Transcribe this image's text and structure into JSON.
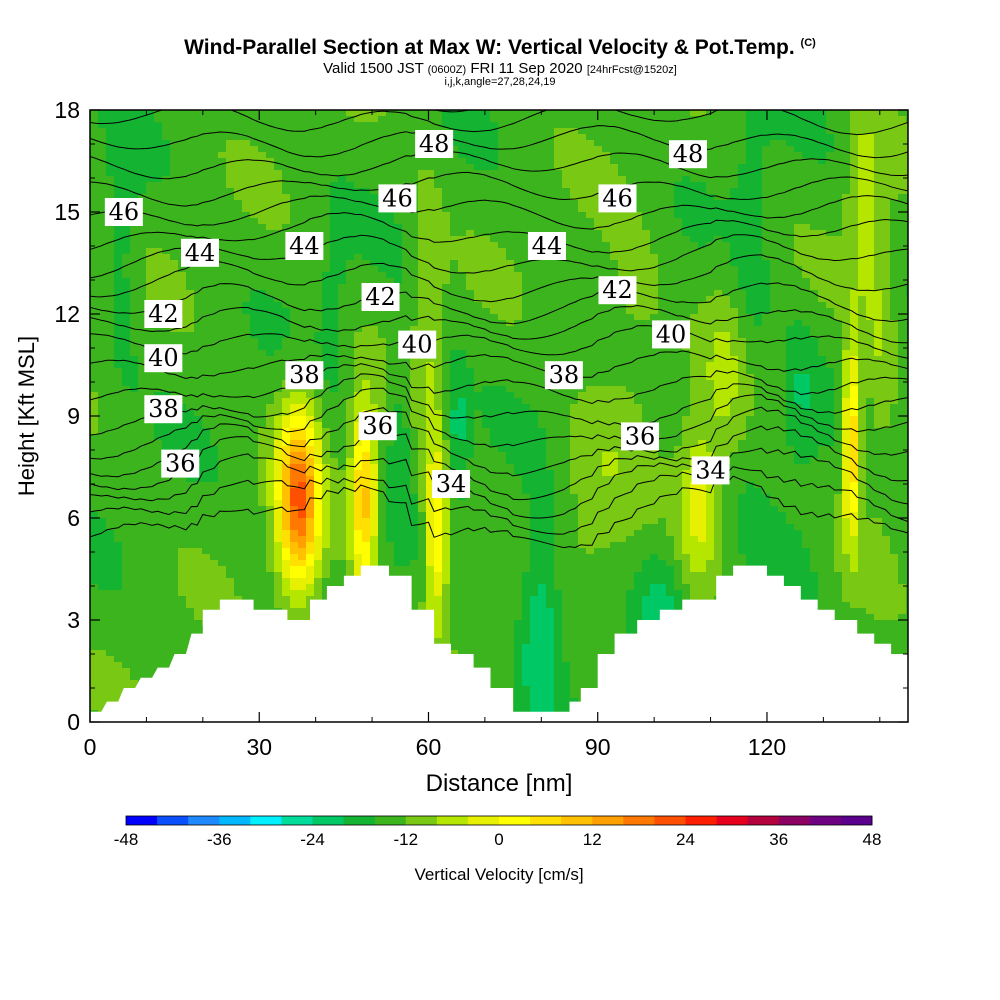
{
  "title": {
    "main": "Wind-Parallel Section at Max W: Vertical Velocity & Pot.Temp.",
    "copyright": "(C)",
    "valid_prefix": "Valid 1500 JST",
    "utc": "(0600Z)",
    "valid_date": "FRI 11 Sep 2020",
    "forecast": "[24hrFcst@1520z]",
    "params": "i,j,k,angle=27,28,24,19"
  },
  "chart_data": {
    "type": "heatmap",
    "xlabel": "Distance [nm]",
    "ylabel": "Height [Kft MSL]",
    "xlim": [
      0,
      145
    ],
    "ylim": [
      0,
      18
    ],
    "x_ticks": [
      "0",
      "30",
      "60",
      "90",
      "120"
    ],
    "y_ticks": [
      "0",
      "3",
      "6",
      "9",
      "12",
      "15",
      "18"
    ],
    "colorbar": {
      "label": "Vertical Velocity [cm/s]",
      "min": -48,
      "max": 48,
      "step": 6,
      "tick_labels": [
        "-48",
        "-36",
        "-24",
        "-12",
        "0",
        "12",
        "24",
        "36",
        "48"
      ],
      "colors": [
        "#0000ff",
        "#0a50ff",
        "#1e88ff",
        "#00b8ff",
        "#00f0ff",
        "#00dc9c",
        "#00c864",
        "#14b432",
        "#3cb41e",
        "#78c814",
        "#b4e600",
        "#e6f000",
        "#ffff00",
        "#ffe000",
        "#ffc000",
        "#ffa000",
        "#ff7800",
        "#ff5000",
        "#ff1e00",
        "#e6001e",
        "#b4003c",
        "#8c0064",
        "#6e0082",
        "#5a008c"
      ]
    },
    "terrain_kft": [
      [
        0,
        0.3
      ],
      [
        2,
        0.3
      ],
      [
        3,
        0.6
      ],
      [
        5,
        0.6
      ],
      [
        6,
        1
      ],
      [
        8,
        1
      ],
      [
        9,
        1.3
      ],
      [
        11,
        1.3
      ],
      [
        12,
        1.6
      ],
      [
        14,
        1.6
      ],
      [
        15,
        2
      ],
      [
        17,
        2
      ],
      [
        18,
        2.6
      ],
      [
        20,
        2.6
      ],
      [
        20,
        3.3
      ],
      [
        23,
        3.3
      ],
      [
        23,
        3.6
      ],
      [
        29,
        3.6
      ],
      [
        29,
        3.3
      ],
      [
        35,
        3.3
      ],
      [
        35,
        3
      ],
      [
        39,
        3
      ],
      [
        39,
        3.6
      ],
      [
        42,
        3.6
      ],
      [
        42,
        4
      ],
      [
        45,
        4
      ],
      [
        45,
        4.3
      ],
      [
        48,
        4.3
      ],
      [
        48,
        4.6
      ],
      [
        53,
        4.6
      ],
      [
        53,
        4.3
      ],
      [
        57,
        4.3
      ],
      [
        57,
        3.3
      ],
      [
        61,
        3.3
      ],
      [
        61,
        2.3
      ],
      [
        64,
        2.3
      ],
      [
        64,
        2
      ],
      [
        68,
        2
      ],
      [
        68,
        1.6
      ],
      [
        71,
        1.6
      ],
      [
        71,
        1
      ],
      [
        75,
        1
      ],
      [
        75,
        0.3
      ],
      [
        85,
        0.3
      ],
      [
        85,
        0.6
      ],
      [
        87,
        0.6
      ],
      [
        87,
        1
      ],
      [
        90,
        1
      ],
      [
        90,
        2
      ],
      [
        93,
        2
      ],
      [
        93,
        2.6
      ],
      [
        97,
        2.6
      ],
      [
        97,
        3
      ],
      [
        101,
        3
      ],
      [
        101,
        3.3
      ],
      [
        105,
        3.3
      ],
      [
        105,
        3.6
      ],
      [
        111,
        3.6
      ],
      [
        111,
        4.3
      ],
      [
        114,
        4.3
      ],
      [
        114,
        4.6
      ],
      [
        120,
        4.6
      ],
      [
        120,
        4.3
      ],
      [
        123,
        4.3
      ],
      [
        123,
        4
      ],
      [
        126,
        4
      ],
      [
        126,
        3.6
      ],
      [
        129,
        3.6
      ],
      [
        129,
        3.3
      ],
      [
        132,
        3.3
      ],
      [
        132,
        3
      ],
      [
        136,
        3
      ],
      [
        136,
        2.6
      ],
      [
        139,
        2.6
      ],
      [
        139,
        2.3
      ],
      [
        142,
        2.3
      ],
      [
        142,
        2
      ],
      [
        145,
        2
      ]
    ],
    "velocity_features": [
      {
        "x": 37,
        "z": 6.5,
        "sx": 2.6,
        "sz": 1.9,
        "w": 50
      },
      {
        "x": 48.5,
        "z": 6.6,
        "sx": 1.6,
        "sz": 1.9,
        "w": 36
      },
      {
        "x": 61.5,
        "z": 5.6,
        "sx": 1.5,
        "sz": 1.8,
        "w": 30
      },
      {
        "x": 108,
        "z": 6.3,
        "sx": 2.5,
        "sz": 1.6,
        "w": 18
      },
      {
        "x": 135,
        "z": 8.2,
        "sx": 1.1,
        "sz": 1.9,
        "w": 36
      },
      {
        "x": 80,
        "z": 2.9,
        "sx": 2.6,
        "sz": 2.2,
        "w": -16
      },
      {
        "x": 65,
        "z": 8.6,
        "sx": 1.5,
        "sz": 1.4,
        "w": -12
      },
      {
        "x": 126,
        "z": 9.6,
        "sx": 2.2,
        "sz": 1.6,
        "w": -8
      },
      {
        "x": 101,
        "z": 3.1,
        "sx": 2.5,
        "sz": 1.3,
        "w": -10
      },
      {
        "x": 117,
        "z": 13.5,
        "sx": 2.5,
        "sz": 3.6,
        "w": -6
      },
      {
        "x": 113,
        "z": 10.5,
        "sx": 3,
        "sz": 2.2,
        "w": 8
      },
      {
        "x": 6,
        "z": 14,
        "sx": 2,
        "sz": 3,
        "w": -6
      },
      {
        "x": 96,
        "z": 12,
        "sx": 4,
        "sz": 2,
        "w": 6
      },
      {
        "x": 140,
        "z": 11,
        "sx": 2,
        "sz": 3,
        "w": 8
      },
      {
        "x": 90,
        "z": 7,
        "sx": 5,
        "sz": 2,
        "w": 6
      },
      {
        "x": 60,
        "z": 12,
        "sx": 2,
        "sz": 3,
        "w": 8
      },
      {
        "x": 55,
        "z": 8.5,
        "sx": 1.5,
        "sz": 2,
        "w": -8
      },
      {
        "x": 43,
        "z": 12,
        "sx": 2,
        "sz": 2,
        "w": -5
      },
      {
        "x": 137,
        "z": 15.5,
        "sx": 2,
        "sz": 2,
        "w": 12
      },
      {
        "x": 125,
        "z": 3.6,
        "sx": 3,
        "sz": 1.2,
        "w": -6
      }
    ],
    "theta_levels": [
      {
        "label": "34",
        "z0": 5.1,
        "show": true,
        "label_x": 64,
        "label_z": 7.1
      },
      {
        "label": "",
        "z0": 5.75,
        "show": false
      },
      {
        "label": "36",
        "z0": 6.4,
        "show": true,
        "label_x": 16,
        "label_z": 7.6
      },
      {
        "label": "",
        "z0": 7.0,
        "show": false
      },
      {
        "label": "",
        "z0": 7.6,
        "show": false
      },
      {
        "label": "38",
        "z0": 8.2,
        "show": true,
        "label_x": 13,
        "label_z": 9.3
      },
      {
        "label": "",
        "z0": 8.8,
        "show": false
      },
      {
        "label": "",
        "z0": 9.5,
        "show": false
      },
      {
        "label": "40",
        "z0": 10.2,
        "show": true,
        "label_x": 13,
        "label_z": 10.7
      },
      {
        "label": "",
        "z0": 10.9,
        "show": false
      },
      {
        "label": "",
        "z0": 11.5,
        "show": false
      },
      {
        "label": "42",
        "z0": 12.1,
        "show": true,
        "label_x": 13,
        "label_z": 12.0
      },
      {
        "label": "",
        "z0": 12.8,
        "show": false
      },
      {
        "label": "",
        "z0": 13.5,
        "show": false
      },
      {
        "label": "44",
        "z0": 14.2,
        "show": true,
        "label_x": 19,
        "label_z": 13.8
      },
      {
        "label": "",
        "z0": 14.9,
        "show": false
      },
      {
        "label": "",
        "z0": 15.6,
        "show": false
      },
      {
        "label": "46",
        "z0": 16.3,
        "show": true,
        "label_x": 6,
        "label_z": 15.0
      },
      {
        "label": "",
        "z0": 17.0,
        "show": false
      },
      {
        "label": "",
        "z0": 17.7,
        "show": false
      },
      {
        "label": "48",
        "z0": 18.4,
        "show": false
      }
    ],
    "contour_labels": [
      {
        "text": "48",
        "x": 61,
        "z": 17.0
      },
      {
        "text": "48",
        "x": 106,
        "z": 16.7
      },
      {
        "text": "46",
        "x": 6,
        "z": 15.0
      },
      {
        "text": "46",
        "x": 54.5,
        "z": 15.4
      },
      {
        "text": "46",
        "x": 93.5,
        "z": 15.4
      },
      {
        "text": "44",
        "x": 19.5,
        "z": 13.8
      },
      {
        "text": "44",
        "x": 38,
        "z": 14.0
      },
      {
        "text": "44",
        "x": 81,
        "z": 14.0
      },
      {
        "text": "42",
        "x": 13,
        "z": 12.0
      },
      {
        "text": "42",
        "x": 51.5,
        "z": 12.5
      },
      {
        "text": "42",
        "x": 93.5,
        "z": 12.7
      },
      {
        "text": "40",
        "x": 13,
        "z": 10.7
      },
      {
        "text": "40",
        "x": 58,
        "z": 11.1
      },
      {
        "text": "40",
        "x": 103,
        "z": 11.4
      },
      {
        "text": "38",
        "x": 13,
        "z": 9.2
      },
      {
        "text": "38",
        "x": 38,
        "z": 10.2
      },
      {
        "text": "38",
        "x": 84,
        "z": 10.2
      },
      {
        "text": "36",
        "x": 16,
        "z": 7.6
      },
      {
        "text": "36",
        "x": 51,
        "z": 8.7
      },
      {
        "text": "36",
        "x": 97.5,
        "z": 8.4
      },
      {
        "text": "34",
        "x": 64,
        "z": 7.0
      },
      {
        "text": "34",
        "x": 110,
        "z": 7.4
      }
    ]
  }
}
